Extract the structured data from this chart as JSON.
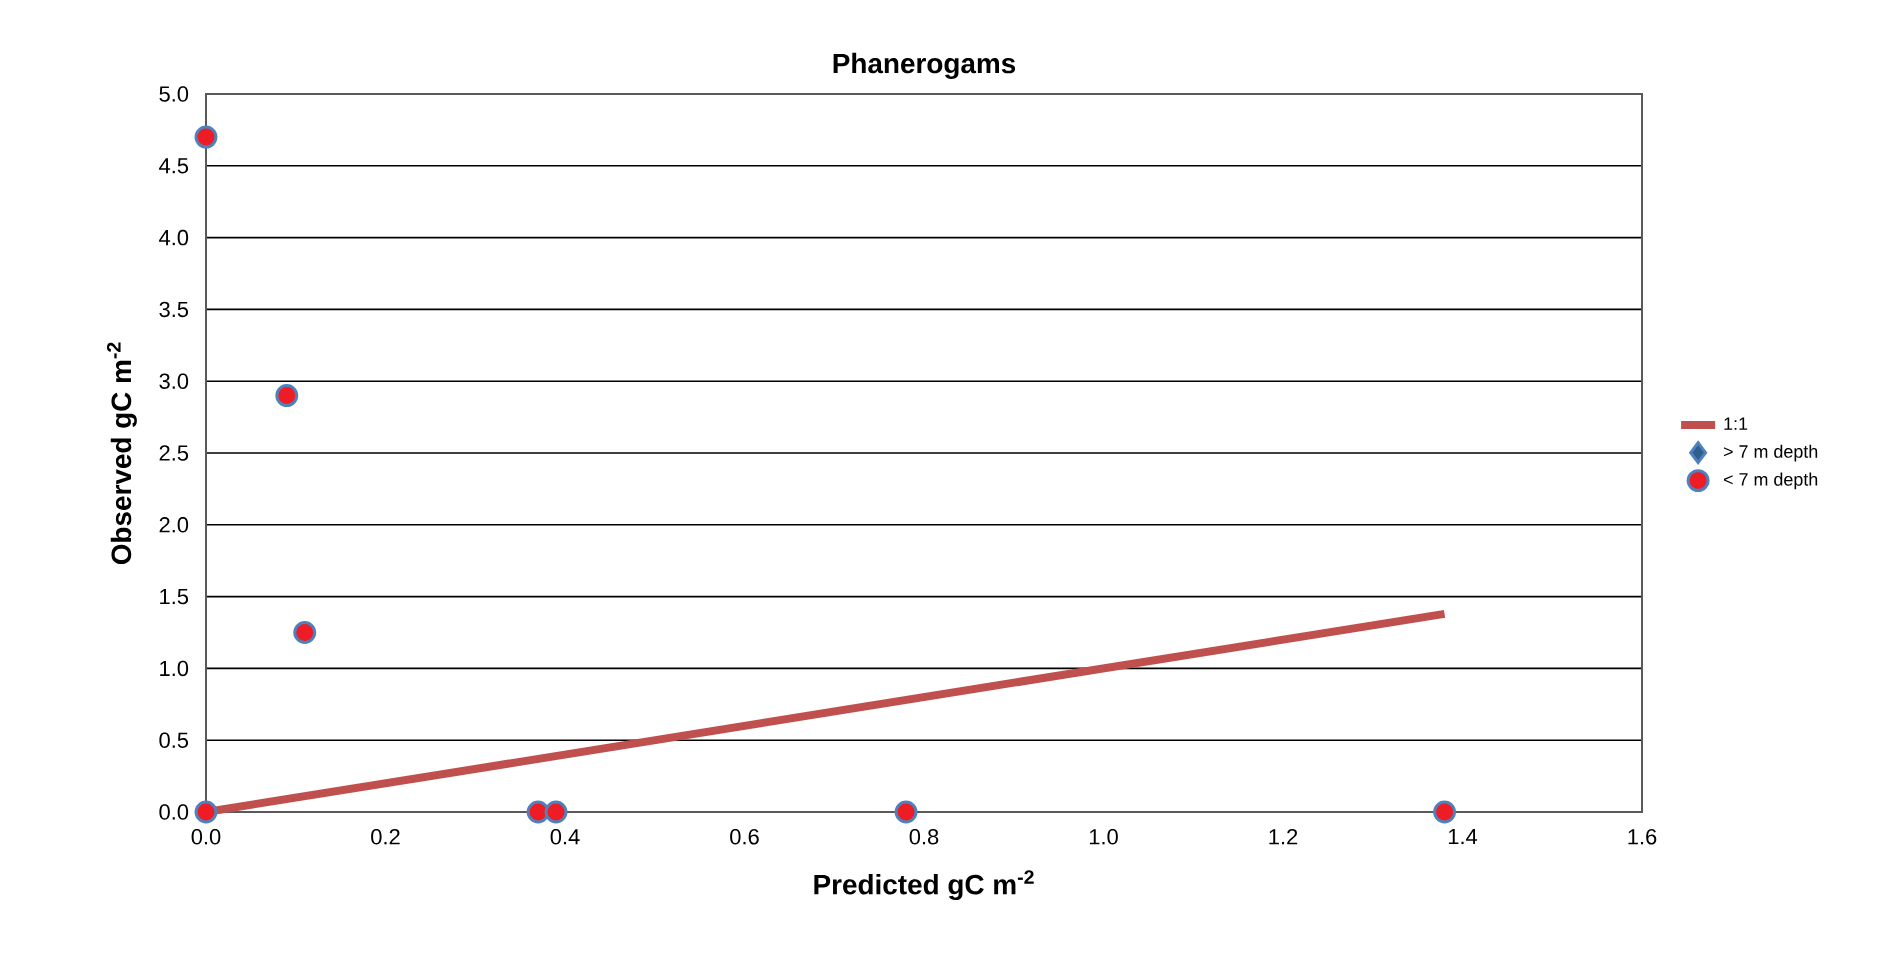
{
  "chart_data": {
    "type": "scatter",
    "title": "Phanerogams",
    "xlabel": "Predicted gC m$^{-2}$",
    "ylabel": "Observed gC m$^{-2}$",
    "xlim": [
      0,
      1.6
    ],
    "ylim": [
      0,
      5.0
    ],
    "xticks": [
      {
        "value": 0,
        "label": "0.0"
      },
      {
        "value": 0.2,
        "label": "0.2"
      },
      {
        "value": 0.4,
        "label": "0.4"
      },
      {
        "value": 0.6,
        "label": "0.6"
      },
      {
        "value": 0.8,
        "label": "0.8"
      },
      {
        "value": 1.0,
        "label": "1.0"
      },
      {
        "value": 1.2,
        "label": "1.2"
      },
      {
        "value": 1.4,
        "label": "1.4"
      },
      {
        "value": 1.6,
        "label": "1.6"
      }
    ],
    "yticks": [
      {
        "value": 0,
        "label": "0.0"
      },
      {
        "value": 0.5,
        "label": "0.5"
      },
      {
        "value": 1.0,
        "label": "1.0"
      },
      {
        "value": 1.5,
        "label": "1.5"
      },
      {
        "value": 2.0,
        "label": "2.0"
      },
      {
        "value": 2.5,
        "label": "2.5"
      },
      {
        "value": 3.0,
        "label": "3.0"
      },
      {
        "value": 3.5,
        "label": "3.5"
      },
      {
        "value": 4.0,
        "label": "4.0"
      },
      {
        "value": 4.5,
        "label": "4.5"
      },
      {
        "value": 5.0,
        "label": "5.0"
      }
    ],
    "grid": "y",
    "legend": "right",
    "series": [
      {
        "name": "1:1",
        "type": "line",
        "color": "#c0504d",
        "marker": "none",
        "x": [
          0,
          1.38
        ],
        "values": [
          0,
          1.38
        ]
      },
      {
        "name": "> 7 m depth",
        "color": "#2f5f8f",
        "marker": "diamond"
      },
      {
        "name": "< 7 m depth",
        "color": "#ee1c24",
        "marker": "circle",
        "x": [
          0,
          0.09,
          0.11,
          0,
          0.37,
          0.39,
          0.78,
          1.38
        ],
        "values": [
          4.7,
          2.9,
          1.25,
          0,
          0,
          0,
          0,
          0
        ]
      }
    ]
  }
}
